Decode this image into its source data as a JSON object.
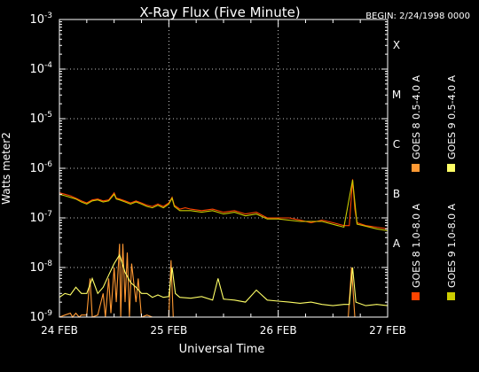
{
  "chart_data": {
    "type": "line",
    "title": "X-Ray Flux (Five Minute)",
    "begin_label": "BEGIN: 2/24/1998 0000",
    "xlabel": "Universal Time",
    "ylabel": "Watts meter2",
    "y_scale": "log",
    "ylim": [
      1e-09,
      0.001
    ],
    "xlim": [
      0,
      3
    ],
    "x_unit": "days since 24 FEB 1998 0000 UT",
    "x_ticks": [
      {
        "value": 0,
        "label": "24 FEB"
      },
      {
        "value": 1,
        "label": "25 FEB"
      },
      {
        "value": 2,
        "label": "26 FEB"
      },
      {
        "value": 3,
        "label": "27 FEB"
      }
    ],
    "y_ticks": [
      {
        "value": 1e-09,
        "base": "10",
        "exp": "-9"
      },
      {
        "value": 1e-08,
        "base": "10",
        "exp": "-8"
      },
      {
        "value": 1e-07,
        "base": "10",
        "exp": "-7"
      },
      {
        "value": 1e-06,
        "base": "10",
        "exp": "-6"
      },
      {
        "value": 1e-05,
        "base": "10",
        "exp": "-5"
      },
      {
        "value": 0.0001,
        "base": "10",
        "exp": "-4"
      },
      {
        "value": 0.001,
        "base": "10",
        "exp": "-3"
      }
    ],
    "flare_classes": [
      {
        "label": "A",
        "value": 1e-08
      },
      {
        "label": "B",
        "value": 1e-07
      },
      {
        "label": "C",
        "value": 1e-06
      },
      {
        "label": "M",
        "value": 1e-05
      },
      {
        "label": "X",
        "value": 0.0001
      }
    ],
    "grid": true,
    "legend_position": "right, vertical",
    "series": [
      {
        "name": "GOES 8 1.0-8.0 A",
        "color": "#ff4400",
        "points": [
          [
            0,
            3.2e-07
          ],
          [
            0.05,
            3e-07
          ],
          [
            0.1,
            2.8e-07
          ],
          [
            0.15,
            2.5e-07
          ],
          [
            0.2,
            2.2e-07
          ],
          [
            0.25,
            2e-07
          ],
          [
            0.3,
            2.3e-07
          ],
          [
            0.35,
            2.4e-07
          ],
          [
            0.4,
            2.2e-07
          ],
          [
            0.45,
            2.3e-07
          ],
          [
            0.5,
            3.2e-07
          ],
          [
            0.52,
            2.5e-07
          ],
          [
            0.55,
            2.4e-07
          ],
          [
            0.6,
            2.2e-07
          ],
          [
            0.65,
            2e-07
          ],
          [
            0.7,
            2.2e-07
          ],
          [
            0.75,
            2e-07
          ],
          [
            0.8,
            1.8e-07
          ],
          [
            0.85,
            1.7e-07
          ],
          [
            0.9,
            1.9e-07
          ],
          [
            0.95,
            1.7e-07
          ],
          [
            1.0,
            2e-07
          ],
          [
            1.03,
            2.6e-07
          ],
          [
            1.05,
            1.8e-07
          ],
          [
            1.1,
            1.5e-07
          ],
          [
            1.15,
            1.6e-07
          ],
          [
            1.2,
            1.5e-07
          ],
          [
            1.3,
            1.4e-07
          ],
          [
            1.4,
            1.5e-07
          ],
          [
            1.5,
            1.3e-07
          ],
          [
            1.6,
            1.4e-07
          ],
          [
            1.7,
            1.2e-07
          ],
          [
            1.8,
            1.3e-07
          ],
          [
            1.9,
            1e-07
          ],
          [
            2.0,
            1e-07
          ],
          [
            2.1,
            1e-07
          ],
          [
            2.2,
            9e-08
          ],
          [
            2.3,
            8e-08
          ],
          [
            2.4,
            9e-08
          ],
          [
            2.5,
            8e-08
          ],
          [
            2.6,
            7e-08
          ],
          [
            2.65,
            7e-08
          ],
          [
            2.68,
            6e-07
          ],
          [
            2.7,
            1.5e-07
          ],
          [
            2.72,
            8e-08
          ],
          [
            2.8,
            7e-08
          ],
          [
            2.9,
            6.5e-08
          ],
          [
            3.0,
            6e-08
          ]
        ]
      },
      {
        "name": "GOES 8 0.5-4.0 A",
        "color": "#ff9933",
        "points": [
          [
            0,
            1e-09
          ],
          [
            0.05,
            1.1e-09
          ],
          [
            0.1,
            1.2e-09
          ],
          [
            0.12,
            1e-09
          ],
          [
            0.15,
            1.2e-09
          ],
          [
            0.18,
            1e-09
          ],
          [
            0.2,
            1.1e-09
          ],
          [
            0.25,
            1.1e-09
          ],
          [
            0.28,
            6e-09
          ],
          [
            0.3,
            1e-09
          ],
          [
            0.35,
            1.1e-09
          ],
          [
            0.4,
            3e-09
          ],
          [
            0.42,
            1e-09
          ],
          [
            0.45,
            6e-09
          ],
          [
            0.47,
            1.2e-09
          ],
          [
            0.5,
            1e-08
          ],
          [
            0.52,
            2e-09
          ],
          [
            0.55,
            3e-08
          ],
          [
            0.56,
            1e-09
          ],
          [
            0.58,
            3e-08
          ],
          [
            0.6,
            2e-09
          ],
          [
            0.62,
            2e-08
          ],
          [
            0.64,
            1e-09
          ],
          [
            0.66,
            1.2e-08
          ],
          [
            0.7,
            2e-09
          ],
          [
            0.72,
            6e-09
          ],
          [
            0.75,
            1e-09
          ],
          [
            0.8,
            1.1e-09
          ],
          [
            0.85,
            1e-09
          ],
          [
            0.9,
            1e-09
          ],
          [
            0.95,
            1e-09
          ],
          [
            1.0,
            1e-09
          ],
          [
            1.02,
            1.4e-08
          ],
          [
            1.04,
            1e-09
          ],
          [
            1.1,
            1e-09
          ],
          [
            1.5,
            1e-09
          ],
          [
            2.0,
            1e-09
          ],
          [
            2.5,
            1e-09
          ],
          [
            2.64,
            1e-09
          ],
          [
            2.67,
            1e-08
          ],
          [
            2.7,
            1e-09
          ],
          [
            3.0,
            1e-09
          ]
        ]
      },
      {
        "name": "GOES 9 1.0-8.0 A",
        "color": "#cccc00",
        "points": [
          [
            0,
            3e-07
          ],
          [
            0.05,
            2.8e-07
          ],
          [
            0.1,
            2.6e-07
          ],
          [
            0.15,
            2.4e-07
          ],
          [
            0.2,
            2.1e-07
          ],
          [
            0.25,
            1.9e-07
          ],
          [
            0.3,
            2.2e-07
          ],
          [
            0.35,
            2.3e-07
          ],
          [
            0.4,
            2.1e-07
          ],
          [
            0.45,
            2.2e-07
          ],
          [
            0.5,
            3e-07
          ],
          [
            0.52,
            2.4e-07
          ],
          [
            0.55,
            2.3e-07
          ],
          [
            0.6,
            2.1e-07
          ],
          [
            0.65,
            1.9e-07
          ],
          [
            0.7,
            2.1e-07
          ],
          [
            0.75,
            1.9e-07
          ],
          [
            0.8,
            1.7e-07
          ],
          [
            0.85,
            1.6e-07
          ],
          [
            0.9,
            1.8e-07
          ],
          [
            0.95,
            1.6e-07
          ],
          [
            1.0,
            1.9e-07
          ],
          [
            1.03,
            2.5e-07
          ],
          [
            1.05,
            1.7e-07
          ],
          [
            1.1,
            1.4e-07
          ],
          [
            1.2,
            1.4e-07
          ],
          [
            1.3,
            1.3e-07
          ],
          [
            1.4,
            1.4e-07
          ],
          [
            1.5,
            1.2e-07
          ],
          [
            1.6,
            1.3e-07
          ],
          [
            1.7,
            1.1e-07
          ],
          [
            1.8,
            1.2e-07
          ],
          [
            1.9,
            9.5e-08
          ],
          [
            2.0,
            9.5e-08
          ],
          [
            2.2,
            8.5e-08
          ],
          [
            2.4,
            8.5e-08
          ],
          [
            2.6,
            6.5e-08
          ],
          [
            2.68,
            5.8e-07
          ],
          [
            2.72,
            7.5e-08
          ],
          [
            2.9,
            6e-08
          ],
          [
            3.0,
            5.5e-08
          ]
        ]
      },
      {
        "name": "GOES 9 0.5-4.0 A",
        "color": "#ffff66",
        "points": [
          [
            0,
            2.5e-09
          ],
          [
            0.05,
            3e-09
          ],
          [
            0.1,
            2.8e-09
          ],
          [
            0.15,
            4e-09
          ],
          [
            0.2,
            3e-09
          ],
          [
            0.25,
            3e-09
          ],
          [
            0.3,
            6e-09
          ],
          [
            0.35,
            3e-09
          ],
          [
            0.4,
            4e-09
          ],
          [
            0.45,
            7e-09
          ],
          [
            0.5,
            1.2e-08
          ],
          [
            0.55,
            1.8e-08
          ],
          [
            0.6,
            8e-09
          ],
          [
            0.65,
            5e-09
          ],
          [
            0.7,
            4e-09
          ],
          [
            0.75,
            3e-09
          ],
          [
            0.8,
            3e-09
          ],
          [
            0.85,
            2.5e-09
          ],
          [
            0.9,
            2.8e-09
          ],
          [
            0.95,
            2.5e-09
          ],
          [
            1.0,
            2.6e-09
          ],
          [
            1.03,
            1e-08
          ],
          [
            1.06,
            3e-09
          ],
          [
            1.1,
            2.5e-09
          ],
          [
            1.2,
            2.4e-09
          ],
          [
            1.3,
            2.6e-09
          ],
          [
            1.4,
            2.2e-09
          ],
          [
            1.45,
            6e-09
          ],
          [
            1.5,
            2.3e-09
          ],
          [
            1.6,
            2.2e-09
          ],
          [
            1.7,
            2e-09
          ],
          [
            1.8,
            3.5e-09
          ],
          [
            1.9,
            2.2e-09
          ],
          [
            2.0,
            2.1e-09
          ],
          [
            2.1,
            2e-09
          ],
          [
            2.2,
            1.9e-09
          ],
          [
            2.3,
            2e-09
          ],
          [
            2.4,
            1.8e-09
          ],
          [
            2.5,
            1.7e-09
          ],
          [
            2.6,
            1.8e-09
          ],
          [
            2.65,
            1.8e-09
          ],
          [
            2.68,
            1e-08
          ],
          [
            2.71,
            2e-09
          ],
          [
            2.8,
            1.7e-09
          ],
          [
            2.9,
            1.8e-09
          ],
          [
            3.0,
            1.7e-09
          ]
        ]
      }
    ]
  }
}
